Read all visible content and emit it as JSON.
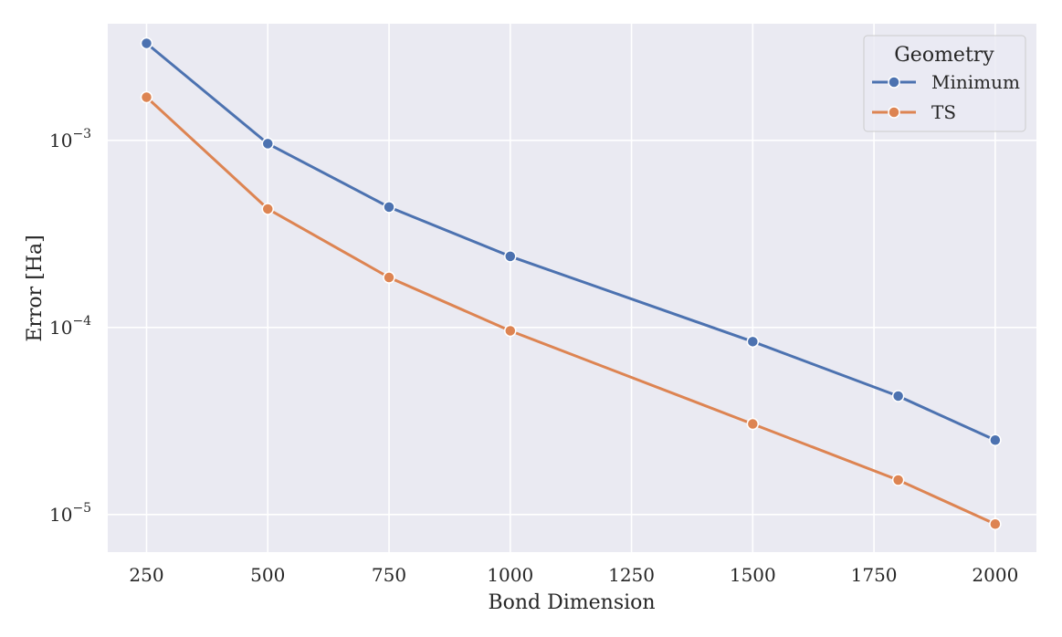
{
  "chart_data": {
    "type": "line",
    "title": "",
    "xlabel": "Bond Dimension",
    "ylabel": "Error [Ha]",
    "x_ticks": [
      250,
      500,
      750,
      1000,
      1250,
      1500,
      1750,
      2000
    ],
    "x_tick_labels": [
      "250",
      "500",
      "750",
      "1000",
      "1250",
      "1500",
      "1750",
      "2000"
    ],
    "xlim": [
      170,
      2085
    ],
    "y_scale": "log",
    "y_ticks": [
      1e-05,
      0.0001,
      0.001
    ],
    "y_tick_labels": [
      {
        "base": "10",
        "exp": "−5"
      },
      {
        "base": "10",
        "exp": "−4"
      },
      {
        "base": "10",
        "exp": "−3"
      }
    ],
    "ylim": [
      6.3e-06,
      0.0042
    ],
    "grid": true,
    "legend": {
      "title": "Geometry",
      "placement": "top-right"
    },
    "series": [
      {
        "name": "Minimum",
        "color": "#4c72b0",
        "x": [
          250,
          500,
          750,
          1000,
          1500,
          1800,
          2000
        ],
        "y": [
          0.0033,
          0.00096,
          0.00044,
          0.00024,
          8.4e-05,
          4.3e-05,
          2.5e-05
        ]
      },
      {
        "name": "TS",
        "color": "#dd8452",
        "x": [
          250,
          500,
          750,
          1000,
          1500,
          1800,
          2000
        ],
        "y": [
          0.0017,
          0.00043,
          0.000185,
          9.6e-05,
          3.05e-05,
          1.53e-05,
          8.9e-06
        ]
      }
    ]
  }
}
